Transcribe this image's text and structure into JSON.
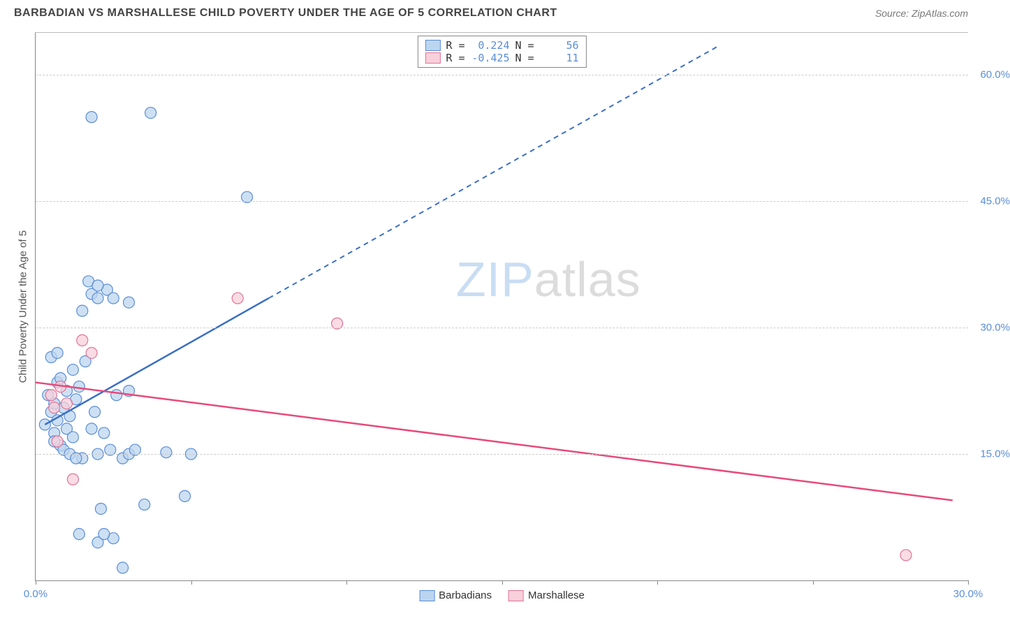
{
  "header": {
    "title": "BARBADIAN VS MARSHALLESE CHILD POVERTY UNDER THE AGE OF 5 CORRELATION CHART",
    "source": "Source: ZipAtlas.com"
  },
  "chart": {
    "type": "scatter",
    "y_label": "Child Poverty Under the Age of 5",
    "xlim": [
      0,
      30
    ],
    "ylim": [
      0,
      65
    ],
    "x_ticks": [
      0,
      5,
      10,
      15,
      20,
      25,
      30
    ],
    "x_tick_labels": [
      "0.0%",
      "",
      "",
      "",
      "",
      "",
      "30.0%"
    ],
    "y_gridlines": [
      15,
      30,
      45,
      60
    ],
    "y_tick_labels": [
      "15.0%",
      "30.0%",
      "45.0%",
      "60.0%"
    ],
    "background_color": "#ffffff",
    "grid_color": "#cccccc",
    "axis_color": "#888888",
    "watermark": {
      "zip": "ZIP",
      "atlas": "atlas"
    },
    "series": {
      "barbadians": {
        "label": "Barbadians",
        "R": "0.224",
        "N": "56",
        "fill": "#bcd5ef",
        "stroke": "#5B8DD6",
        "line_color": "#3b6fc4",
        "marker_radius": 8,
        "regression_solid": {
          "x1": 0.3,
          "y1": 18.5,
          "x2": 7.5,
          "y2": 33.5
        },
        "regression_dashed": {
          "x1": 7.5,
          "y1": 33.5,
          "x2": 22.0,
          "y2": 63.5
        },
        "points": [
          [
            0.3,
            18.5
          ],
          [
            0.4,
            22.0
          ],
          [
            0.5,
            20.0
          ],
          [
            0.5,
            26.5
          ],
          [
            0.6,
            21.0
          ],
          [
            0.6,
            17.5
          ],
          [
            0.7,
            19.0
          ],
          [
            0.7,
            23.5
          ],
          [
            0.8,
            16.0
          ],
          [
            0.8,
            24.0
          ],
          [
            0.9,
            20.5
          ],
          [
            1.0,
            18.0
          ],
          [
            1.0,
            22.5
          ],
          [
            1.1,
            19.5
          ],
          [
            1.2,
            25.0
          ],
          [
            1.2,
            17.0
          ],
          [
            1.3,
            21.5
          ],
          [
            1.4,
            23.0
          ],
          [
            1.5,
            32.0
          ],
          [
            1.5,
            14.5
          ],
          [
            1.6,
            26.0
          ],
          [
            1.7,
            35.5
          ],
          [
            1.8,
            34.0
          ],
          [
            1.8,
            18.0
          ],
          [
            1.9,
            20.0
          ],
          [
            2.0,
            33.5
          ],
          [
            2.0,
            15.0
          ],
          [
            2.1,
            8.5
          ],
          [
            2.2,
            17.5
          ],
          [
            2.3,
            34.5
          ],
          [
            2.4,
            15.5
          ],
          [
            2.5,
            33.5
          ],
          [
            2.5,
            5.0
          ],
          [
            2.6,
            22.0
          ],
          [
            2.8,
            14.5
          ],
          [
            3.0,
            22.5
          ],
          [
            3.0,
            15.0
          ],
          [
            3.2,
            15.5
          ],
          [
            3.5,
            9.0
          ],
          [
            3.7,
            55.5
          ],
          [
            1.8,
            55.0
          ],
          [
            2.0,
            4.5
          ],
          [
            2.2,
            5.5
          ],
          [
            1.4,
            5.5
          ],
          [
            0.9,
            15.5
          ],
          [
            1.1,
            15.0
          ],
          [
            1.3,
            14.5
          ],
          [
            0.6,
            16.5
          ],
          [
            0.7,
            27.0
          ],
          [
            2.0,
            35.0
          ],
          [
            3.0,
            33.0
          ],
          [
            4.8,
            10.0
          ],
          [
            4.2,
            15.2
          ],
          [
            2.8,
            1.5
          ],
          [
            6.8,
            45.5
          ],
          [
            5.0,
            15.0
          ]
        ]
      },
      "marshallese": {
        "label": "Marshallese",
        "R": "-0.425",
        "N": "11",
        "fill": "#f7d0db",
        "stroke": "#E27396",
        "line_color": "#e84a7a",
        "marker_radius": 8,
        "regression_solid": {
          "x1": 0.0,
          "y1": 23.5,
          "x2": 29.5,
          "y2": 9.5
        },
        "points": [
          [
            0.5,
            22.0
          ],
          [
            0.6,
            20.5
          ],
          [
            0.7,
            16.5
          ],
          [
            0.8,
            23.0
          ],
          [
            1.0,
            21.0
          ],
          [
            1.2,
            12.0
          ],
          [
            1.5,
            28.5
          ],
          [
            1.8,
            27.0
          ],
          [
            6.5,
            33.5
          ],
          [
            9.7,
            30.5
          ],
          [
            28.0,
            3.0
          ]
        ]
      }
    },
    "legend_top": {
      "rows": [
        {
          "series": "barbadians",
          "R_label": "R =",
          "N_label": "N ="
        },
        {
          "series": "marshallese",
          "R_label": "R =",
          "N_label": "N ="
        }
      ]
    },
    "legend_bottom": [
      {
        "series": "barbadians"
      },
      {
        "series": "marshallese"
      }
    ]
  }
}
